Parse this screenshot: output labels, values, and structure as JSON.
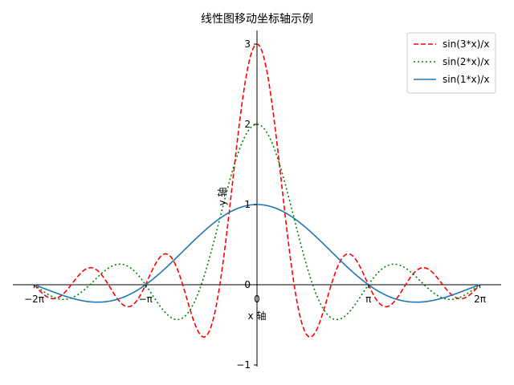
{
  "chart_data": {
    "type": "line",
    "title": "线性图移动坐标轴示例",
    "xlabel": "x 轴",
    "ylabel": "y 轴",
    "xlim": [
      -6.6,
      6.6
    ],
    "ylim": [
      -1.0,
      3.3
    ],
    "grid": false,
    "spines": "centered at origin",
    "xticks": [
      {
        "value": -6.283185307,
        "label": "−2π"
      },
      {
        "value": -3.141592654,
        "label": "−π"
      },
      {
        "value": 0,
        "label": "0"
      },
      {
        "value": 3.141592654,
        "label": "π"
      },
      {
        "value": 6.283185307,
        "label": "2π"
      }
    ],
    "yticks": [
      {
        "value": -1,
        "label": "−1"
      },
      {
        "value": 0,
        "label": "0"
      },
      {
        "value": 1,
        "label": "1"
      },
      {
        "value": 2,
        "label": "2"
      },
      {
        "value": 3,
        "label": "3"
      }
    ],
    "legend_position": "top-right",
    "series": [
      {
        "name": "sin(3*x)/x",
        "k": 3,
        "color": "#ff0000",
        "style": "dashed",
        "x": [
          -6.283,
          -5.498,
          -4.712,
          -3.927,
          -3.142,
          -2.356,
          -1.571,
          -0.785,
          0,
          0.785,
          1.571,
          2.356,
          3.142,
          3.927,
          4.712,
          5.498,
          6.283
        ],
        "values": [
          0,
          0.129,
          -0.212,
          -0.18,
          0,
          0.3,
          -0.637,
          0.9,
          3.0,
          0.9,
          -0.637,
          0.3,
          0,
          -0.18,
          -0.212,
          0.129,
          0
        ]
      },
      {
        "name": "sin(2*x)/x",
        "k": 2,
        "color": "#008000",
        "style": "dotted",
        "x": [
          -6.283,
          -5.498,
          -4.712,
          -3.927,
          -3.142,
          -2.356,
          -1.571,
          -0.785,
          0,
          0.785,
          1.571,
          2.356,
          3.142,
          3.927,
          4.712,
          5.498,
          6.283
        ],
        "values": [
          0,
          -0.182,
          0,
          0.255,
          0,
          -0.424,
          0,
          1.273,
          2.0,
          1.273,
          0,
          -0.424,
          0,
          0.255,
          0,
          -0.182,
          0
        ]
      },
      {
        "name": "sin(1*x)/x",
        "k": 1,
        "color": "#1f77b4",
        "style": "solid",
        "x": [
          -6.283,
          -5.498,
          -4.712,
          -3.927,
          -3.142,
          -2.356,
          -1.571,
          -0.785,
          0,
          0.785,
          1.571,
          2.356,
          3.142,
          3.927,
          4.712,
          5.498,
          6.283
        ],
        "values": [
          0,
          -0.129,
          -0.212,
          -0.18,
          0,
          0.3,
          0.637,
          0.9,
          1.0,
          0.9,
          0.637,
          0.3,
          0,
          -0.18,
          -0.212,
          -0.129,
          0
        ]
      }
    ]
  }
}
